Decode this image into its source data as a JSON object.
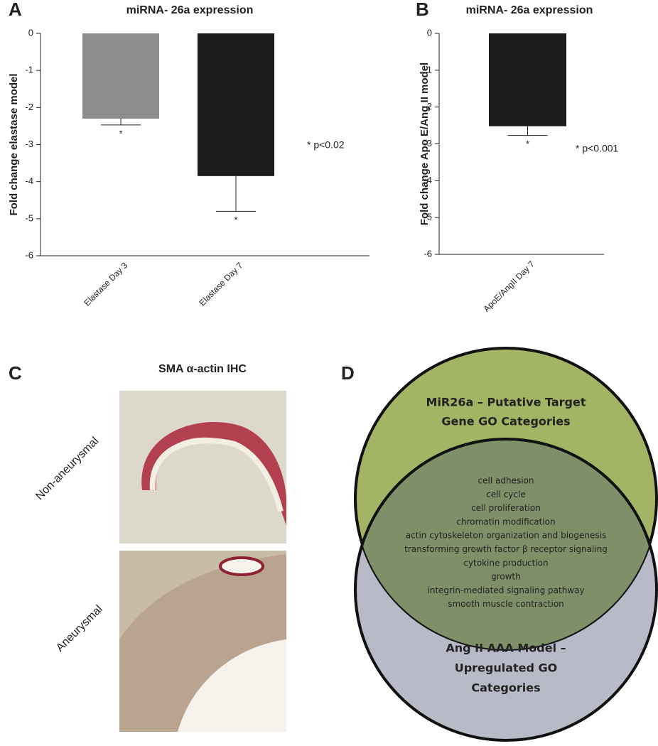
{
  "chart_data": [
    {
      "type": "bar",
      "panel": "A",
      "title": "miRNA- 26a expression",
      "y_label": "Fold change elastase model",
      "categories": [
        "Elastase Day 3",
        "Elastase Day 7"
      ],
      "values": [
        -2.3,
        -3.85
      ],
      "errors": [
        0.17,
        0.95
      ],
      "colors": [
        "#8c8c8c",
        "#1c1c1c"
      ],
      "significance": [
        "*",
        "*"
      ],
      "annotation": "* p<0.02",
      "ylim": [
        -6,
        0
      ],
      "yticks": [
        0,
        -1,
        -2,
        -3,
        -4,
        -5,
        -6
      ]
    },
    {
      "type": "bar",
      "panel": "B",
      "title": "miRNA- 26a expression",
      "y_label": "Fold change Apo E/Ang II model",
      "categories": [
        "ApoE/AngII Day 7"
      ],
      "values": [
        -2.52
      ],
      "errors": [
        0.25
      ],
      "colors": [
        "#1c1c1c"
      ],
      "significance": [
        "*"
      ],
      "annotation": "* p<0.001",
      "ylim": [
        -6,
        0
      ],
      "yticks": [
        0,
        -1,
        -2,
        -3,
        -4,
        -5,
        -6
      ]
    }
  ],
  "histology": {
    "panel": "C",
    "title": "SMA α-actin IHC",
    "labels": [
      "Non-aneurysmal",
      "Aneurysmal"
    ]
  },
  "venn": {
    "panel": "D",
    "top_label": [
      "MiR26a – Putative Target",
      "Gene GO Categories"
    ],
    "overlap": [
      "cell adhesion",
      "cell cycle",
      "cell proliferation",
      "chromatin modification",
      "actin cytoskeleton organization and biogenesis",
      "transforming growth factor β receptor signaling",
      "cytokine production",
      "growth",
      "integrin-mediated signaling pathway",
      "smooth muscle contraction"
    ],
    "bottom_label": [
      "Ang II AAA Model –",
      "Upregulated GO",
      "Categories"
    ]
  }
}
